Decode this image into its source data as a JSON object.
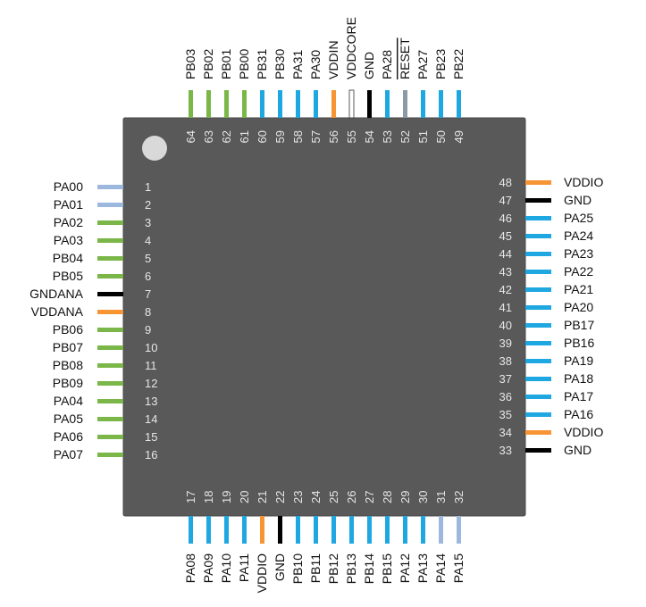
{
  "colors": {
    "body": "#595959",
    "body_border": "#4a4a4a",
    "pin1_dot": "#d9d9d9",
    "number_text": "#e6e6e6",
    "label_text": "#111111",
    "pin_types": {
      "green": "#7ab648",
      "blue": "#1ea7e1",
      "lightblue": "#9db8de",
      "orange": "#f79433",
      "black": "#000000",
      "white": "#ffffff",
      "gray": "#8c9aa5"
    }
  },
  "pins": {
    "left": [
      {
        "num": "1",
        "label": "PA00",
        "type": "lightblue"
      },
      {
        "num": "2",
        "label": "PA01",
        "type": "lightblue"
      },
      {
        "num": "3",
        "label": "PA02",
        "type": "green"
      },
      {
        "num": "4",
        "label": "PA03",
        "type": "green"
      },
      {
        "num": "5",
        "label": "PB04",
        "type": "green"
      },
      {
        "num": "6",
        "label": "PB05",
        "type": "green"
      },
      {
        "num": "7",
        "label": "GNDANA",
        "type": "black"
      },
      {
        "num": "8",
        "label": "VDDANA",
        "type": "orange"
      },
      {
        "num": "9",
        "label": "PB06",
        "type": "green"
      },
      {
        "num": "10",
        "label": "PB07",
        "type": "green"
      },
      {
        "num": "11",
        "label": "PB08",
        "type": "green"
      },
      {
        "num": "12",
        "label": "PB09",
        "type": "green"
      },
      {
        "num": "13",
        "label": "PA04",
        "type": "green"
      },
      {
        "num": "14",
        "label": "PA05",
        "type": "green"
      },
      {
        "num": "15",
        "label": "PA06",
        "type": "green"
      },
      {
        "num": "16",
        "label": "PA07",
        "type": "green"
      }
    ],
    "bottom": [
      {
        "num": "17",
        "label": "PA08",
        "type": "blue"
      },
      {
        "num": "18",
        "label": "PA09",
        "type": "blue"
      },
      {
        "num": "19",
        "label": "PA10",
        "type": "blue"
      },
      {
        "num": "20",
        "label": "PA11",
        "type": "blue"
      },
      {
        "num": "21",
        "label": "VDDIO",
        "type": "orange"
      },
      {
        "num": "22",
        "label": "GND",
        "type": "black"
      },
      {
        "num": "23",
        "label": "PB10",
        "type": "blue"
      },
      {
        "num": "24",
        "label": "PB11",
        "type": "blue"
      },
      {
        "num": "25",
        "label": "PB12",
        "type": "blue"
      },
      {
        "num": "26",
        "label": "PB13",
        "type": "blue"
      },
      {
        "num": "27",
        "label": "PB14",
        "type": "blue"
      },
      {
        "num": "28",
        "label": "PB15",
        "type": "blue"
      },
      {
        "num": "29",
        "label": "PA12",
        "type": "blue"
      },
      {
        "num": "30",
        "label": "PA13",
        "type": "blue"
      },
      {
        "num": "31",
        "label": "PA14",
        "type": "lightblue"
      },
      {
        "num": "32",
        "label": "PA15",
        "type": "lightblue"
      }
    ],
    "right": [
      {
        "num": "33",
        "label": "GND",
        "type": "black"
      },
      {
        "num": "34",
        "label": "VDDIO",
        "type": "orange"
      },
      {
        "num": "35",
        "label": "PA16",
        "type": "blue"
      },
      {
        "num": "36",
        "label": "PA17",
        "type": "blue"
      },
      {
        "num": "37",
        "label": "PA18",
        "type": "blue"
      },
      {
        "num": "38",
        "label": "PA19",
        "type": "blue"
      },
      {
        "num": "39",
        "label": "PB16",
        "type": "blue"
      },
      {
        "num": "40",
        "label": "PB17",
        "type": "blue"
      },
      {
        "num": "41",
        "label": "PA20",
        "type": "blue"
      },
      {
        "num": "42",
        "label": "PA21",
        "type": "blue"
      },
      {
        "num": "43",
        "label": "PA22",
        "type": "blue"
      },
      {
        "num": "44",
        "label": "PA23",
        "type": "blue"
      },
      {
        "num": "45",
        "label": "PA24",
        "type": "blue"
      },
      {
        "num": "46",
        "label": "PA25",
        "type": "blue"
      },
      {
        "num": "47",
        "label": "GND",
        "type": "black"
      },
      {
        "num": "48",
        "label": "VDDIO",
        "type": "orange"
      }
    ],
    "top": [
      {
        "num": "49",
        "label": "PB22",
        "type": "blue"
      },
      {
        "num": "50",
        "label": "PB23",
        "type": "blue"
      },
      {
        "num": "51",
        "label": "PA27",
        "type": "blue"
      },
      {
        "num": "52",
        "label": "RESET",
        "type": "gray",
        "overline": true
      },
      {
        "num": "53",
        "label": "PA28",
        "type": "blue"
      },
      {
        "num": "54",
        "label": "GND",
        "type": "black"
      },
      {
        "num": "55",
        "label": "VDDCORE",
        "type": "white"
      },
      {
        "num": "56",
        "label": "VDDIN",
        "type": "orange"
      },
      {
        "num": "57",
        "label": "PA30",
        "type": "blue"
      },
      {
        "num": "58",
        "label": "PA31",
        "type": "blue"
      },
      {
        "num": "59",
        "label": "PB30",
        "type": "blue"
      },
      {
        "num": "60",
        "label": "PB31",
        "type": "blue"
      },
      {
        "num": "61",
        "label": "PB00",
        "type": "green"
      },
      {
        "num": "62",
        "label": "PB01",
        "type": "green"
      },
      {
        "num": "63",
        "label": "PB02",
        "type": "green"
      },
      {
        "num": "64",
        "label": "PB03",
        "type": "green"
      }
    ]
  }
}
